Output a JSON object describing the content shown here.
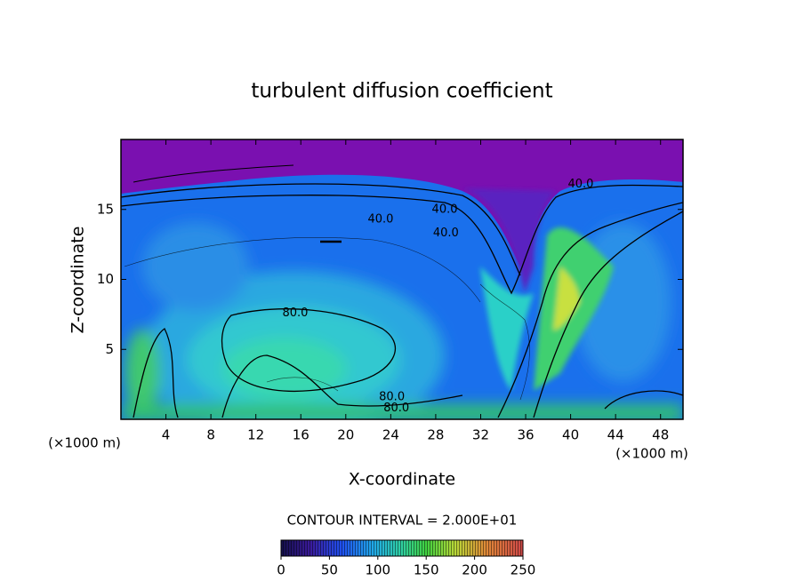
{
  "chart_data": {
    "type": "contour",
    "title": "turbulent diffusion coefficient",
    "x_label": "X-coordinate",
    "y_label": "Z-coordinate",
    "x_unit": "(×1000 m)",
    "y_unit": "(×1000 m)",
    "xlim": [
      0,
      50
    ],
    "xticks": [
      4,
      8,
      12,
      16,
      20,
      24,
      28,
      32,
      36,
      40,
      44,
      48
    ],
    "ylim": [
      0,
      20
    ],
    "yticks": [
      5,
      10,
      15
    ],
    "contour_interval": "CONTOUR INTERVAL = 2.000E+01",
    "clim": [
      0,
      250
    ],
    "cticks": [
      0,
      50,
      100,
      150,
      200,
      250
    ],
    "contour_labels": [
      {
        "value": 40,
        "label": "40.0",
        "x": 23.1,
        "y": 14.3
      },
      {
        "value": 40,
        "label": "40.0",
        "x": 28.8,
        "y": 15.0
      },
      {
        "value": 40,
        "label": "40.0",
        "x": 28.9,
        "y": 13.3
      },
      {
        "value": 40,
        "label": "40.0",
        "x": 40.9,
        "y": 16.8
      },
      {
        "value": 80,
        "label": "80.0",
        "x": 15.5,
        "y": 7.6
      },
      {
        "value": 80,
        "label": "80.0",
        "x": 24.1,
        "y": 1.6
      },
      {
        "value": 80,
        "label": "80.0",
        "x": 24.5,
        "y": 0.8
      }
    ]
  }
}
